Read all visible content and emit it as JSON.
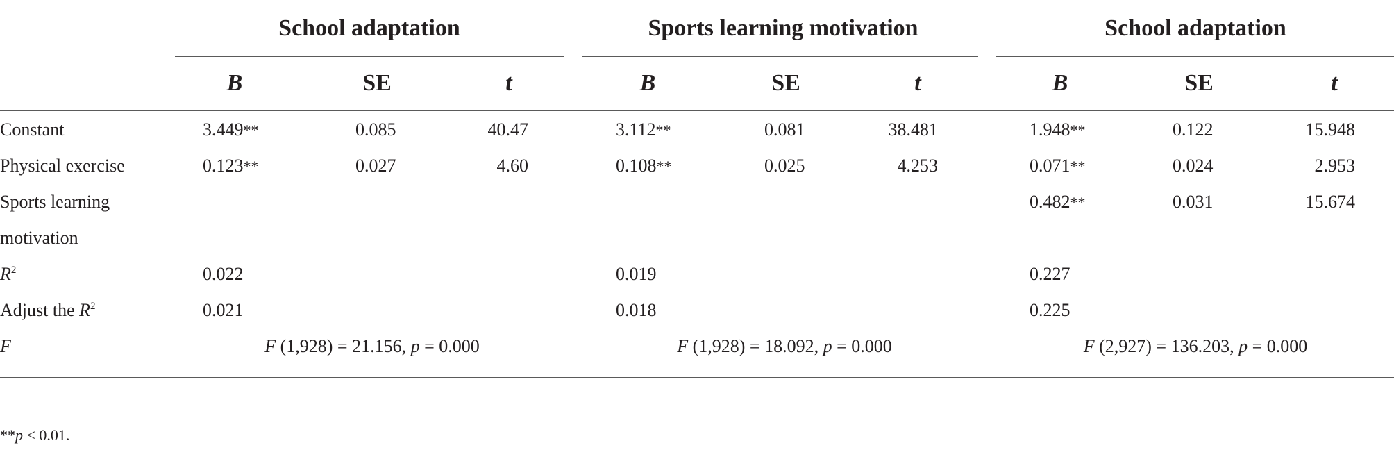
{
  "groups": [
    "School adaptation",
    "Sports learning motivation",
    "School adaptation"
  ],
  "col_headers": [
    "B",
    "SE",
    "t"
  ],
  "rows": {
    "constant": {
      "label": "Constant",
      "g1": {
        "B": "3.449",
        "B_sig": "**",
        "SE": "0.085",
        "t": "40.47"
      },
      "g2": {
        "B": "3.112",
        "B_sig": "**",
        "SE": "0.081",
        "t": "38.481"
      },
      "g3": {
        "B": "1.948",
        "B_sig": "**",
        "SE": "0.122",
        "t": "15.948"
      }
    },
    "exercise": {
      "label": "Physical exercise",
      "g1": {
        "B": "0.123",
        "B_sig": "**",
        "SE": "0.027",
        "t": "4.60"
      },
      "g2": {
        "B": "0.108",
        "B_sig": "**",
        "SE": "0.025",
        "t": "4.253"
      },
      "g3": {
        "B": "0.071",
        "B_sig": "**",
        "SE": "0.024",
        "t": "2.953"
      }
    },
    "motivation": {
      "label_line1": "Sports learning",
      "label_line2": "motivation",
      "g3": {
        "B": "0.482",
        "B_sig": "**",
        "SE": "0.031",
        "t": "15.674"
      }
    },
    "r2": {
      "label": "R",
      "sup": "2",
      "g1": "0.022",
      "g2": "0.019",
      "g3": "0.227"
    },
    "adj_r2": {
      "label": "Adjust the ",
      "label_var": "R",
      "sup": "2",
      "g1": "0.021",
      "g2": "0.018",
      "g3": "0.225"
    },
    "f": {
      "label": "F",
      "g1": {
        "F": "F",
        "df": " (1,928) = 21.156, ",
        "p": "p",
        "pval": " = 0.000"
      },
      "g2": {
        "F": "F",
        "df": " (1,928) = 18.092, ",
        "p": "p",
        "pval": " = 0.000"
      },
      "g3": {
        "F": "F",
        "df": " (2,927) = 136.203, ",
        "p": "p",
        "pval": " = 0.000"
      }
    }
  },
  "footnote": {
    "stars": "**",
    "p": "p",
    "text": " < 0.01."
  }
}
